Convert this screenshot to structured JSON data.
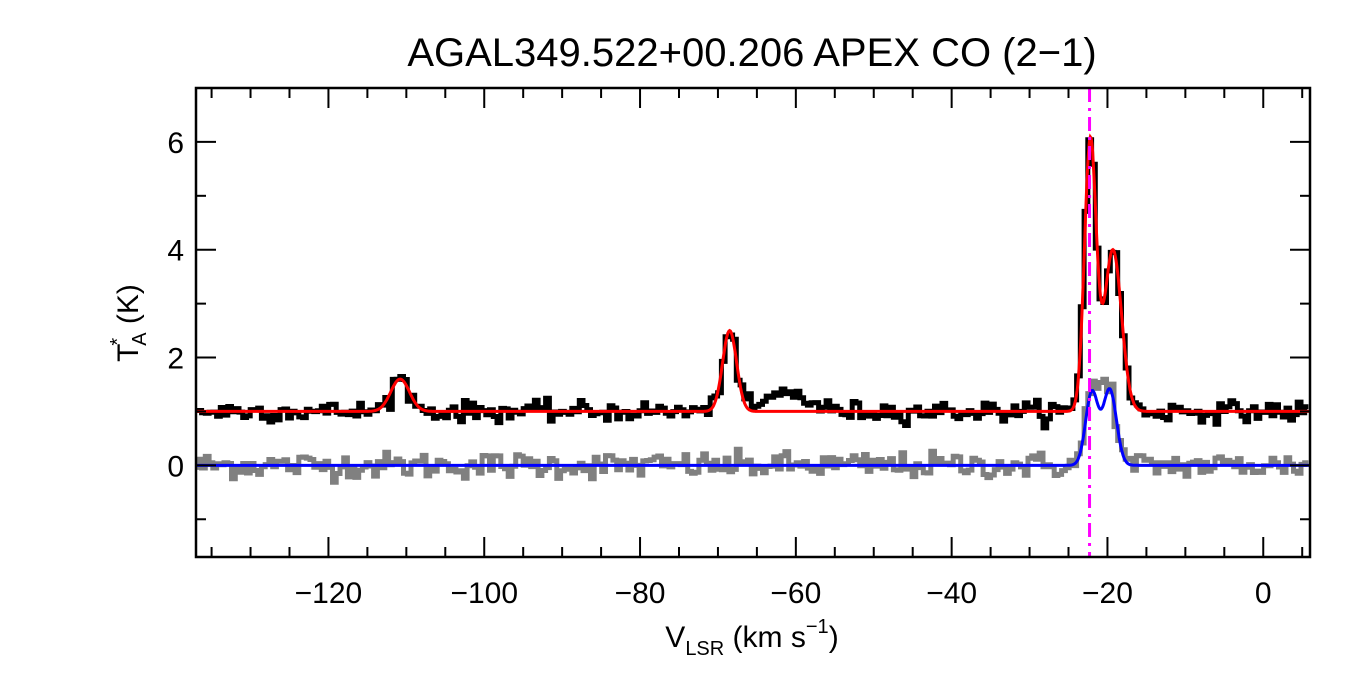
{
  "chart_data": {
    "type": "line",
    "title": "AGAL349.522+00.206  APEX CO (2−1)",
    "xlabel": {
      "main": "V",
      "sub": "LSR",
      "unit_prefix": " (km s",
      "sup": "−1",
      "unit_suffix": ")"
    },
    "ylabel": {
      "main": "T",
      "sup": "*",
      "sub": "A",
      "unit": " (K)"
    },
    "xlim": [
      -137,
      6
    ],
    "ylim": [
      -1.7,
      7
    ],
    "x_ticks": [
      -120,
      -100,
      -80,
      -60,
      -40,
      -20,
      0
    ],
    "x_tick_labels": [
      "−120",
      "−100",
      "−80",
      "−60",
      "−40",
      "−20",
      "0"
    ],
    "y_ticks": [
      0,
      2,
      4,
      6
    ],
    "y_tick_labels": [
      "0",
      "2",
      "4",
      "6"
    ],
    "x_minor_step": 5,
    "y_minor_step": 1,
    "vline": {
      "x": -22.3,
      "style": "dash-dot",
      "color": "#ff00ff"
    },
    "series": [
      {
        "name": "spectrum-offset",
        "color": "#000000",
        "style": "histogram",
        "offset": 1.0,
        "noise": 0.09,
        "components": [
          {
            "amp": 0.6,
            "center": -110.8,
            "sigma": 1.2
          },
          {
            "amp": 1.5,
            "center": -68.5,
            "sigma": 0.9
          },
          {
            "amp": 0.35,
            "center": -61,
            "sigma": 2.5
          },
          {
            "amp": 5.0,
            "center": -22.2,
            "sigma": 0.75
          },
          {
            "amp": 3.0,
            "center": -19.3,
            "sigma": 1.1
          }
        ]
      },
      {
        "name": "fit-offset",
        "color": "#ff0000",
        "style": "line",
        "offset": 1.0,
        "components": [
          {
            "amp": 0.6,
            "center": -110.8,
            "sigma": 1.2
          },
          {
            "amp": 1.5,
            "center": -68.5,
            "sigma": 0.9
          },
          {
            "amp": 5.0,
            "center": -22.2,
            "sigma": 0.75
          },
          {
            "amp": 3.0,
            "center": -19.3,
            "sigma": 1.1
          }
        ]
      },
      {
        "name": "spectrum-secondary",
        "color": "#808080",
        "style": "histogram",
        "offset": 0.0,
        "noise": 0.12,
        "components": [
          {
            "amp": 1.4,
            "center": -22.0,
            "sigma": 0.8
          },
          {
            "amp": 1.6,
            "center": -19.9,
            "sigma": 0.9
          }
        ]
      },
      {
        "name": "fit-secondary",
        "color": "#0000ff",
        "style": "line",
        "offset": 0.0,
        "components": [
          {
            "amp": 1.35,
            "center": -22.0,
            "sigma": 0.8
          },
          {
            "amp": 1.4,
            "center": -19.7,
            "sigma": 0.85
          }
        ]
      }
    ]
  }
}
